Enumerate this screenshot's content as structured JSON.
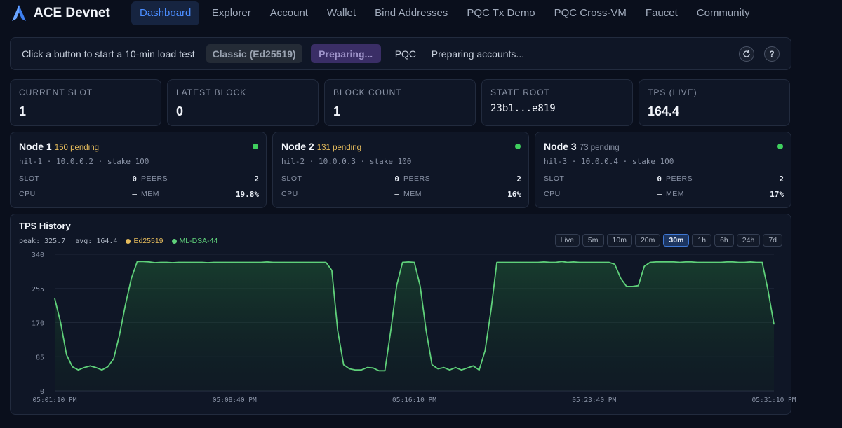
{
  "brand": {
    "title": "ACE Devnet"
  },
  "nav": {
    "tabs": [
      "Dashboard",
      "Explorer",
      "Account",
      "Wallet",
      "Bind Addresses",
      "PQC Tx Demo",
      "PQC Cross-VM",
      "Faucet",
      "Community"
    ],
    "active": "Dashboard"
  },
  "loadtest": {
    "hint": "Click a button to start a 10-min load test",
    "classic_label": "Classic (Ed25519)",
    "pqc_label": "Preparing...",
    "status": "PQC — Preparing accounts...",
    "help_label": "?"
  },
  "stats": [
    {
      "label": "CURRENT SLOT",
      "value": "1"
    },
    {
      "label": "LATEST BLOCK",
      "value": "0"
    },
    {
      "label": "BLOCK COUNT",
      "value": "1"
    },
    {
      "label": "STATE ROOT",
      "value": "23b1...e819"
    },
    {
      "label": "TPS (LIVE)",
      "value": "164.4"
    }
  ],
  "node_labels": {
    "slot": "SLOT",
    "peers": "PEERS",
    "cpu": "CPU",
    "mem": "MEM"
  },
  "nodes": [
    {
      "name": "Node 1",
      "pending": "150 pending",
      "pending_color": "#e6bc5c",
      "addr": "hil-1 · 10.0.0.2 · stake 100",
      "slot": "0",
      "peers": "2",
      "cpu": "—",
      "mem": "19.8%"
    },
    {
      "name": "Node 2",
      "pending": "131 pending",
      "pending_color": "#e6bc5c",
      "addr": "hil-2 · 10.0.0.3 · stake 100",
      "slot": "0",
      "peers": "2",
      "cpu": "—",
      "mem": "16%"
    },
    {
      "name": "Node 3",
      "pending": "73 pending",
      "pending_color": "#8a93a6",
      "addr": "hil-3 · 10.0.0.4 · stake 100",
      "slot": "0",
      "peers": "2",
      "cpu": "—",
      "mem": "17%"
    }
  ],
  "chart": {
    "title": "TPS History",
    "peak_text": "peak: 325.7",
    "avg_text": "avg: 164.4",
    "ranges": [
      "Live",
      "5m",
      "10m",
      "20m",
      "30m",
      "1h",
      "6h",
      "24h",
      "7d"
    ],
    "active_range": "30m"
  },
  "colors": {
    "accent": "#4b8dff",
    "ed25519": "#e6bc5c",
    "ml_dsa": "#5fd07a",
    "status_ok": "#3fcf5e"
  },
  "chart_data": {
    "type": "area",
    "title": "TPS History",
    "ylim": [
      0,
      340
    ],
    "yticks": [
      0,
      85,
      170,
      255,
      340
    ],
    "xticks": [
      "05:01:10 PM",
      "05:08:40 PM",
      "05:16:10 PM",
      "05:23:40 PM",
      "05:31:10 PM"
    ],
    "grid": true,
    "legend_position": "top-left",
    "series": [
      {
        "name": "Ed25519",
        "color": "#e6bc5c",
        "values": []
      },
      {
        "name": "ML-DSA-44",
        "color": "#5fd07a",
        "values": [
          230,
          170,
          90,
          60,
          52,
          58,
          62,
          58,
          52,
          60,
          80,
          140,
          215,
          280,
          322,
          322,
          321,
          319,
          320,
          320,
          319,
          320,
          320,
          320,
          320,
          320,
          319,
          320,
          320,
          320,
          320,
          320,
          320,
          320,
          320,
          320,
          321,
          320,
          320,
          320,
          320,
          320,
          320,
          320,
          320,
          320,
          320,
          300,
          150,
          65,
          55,
          52,
          52,
          58,
          57,
          50,
          50,
          150,
          262,
          320,
          321,
          320,
          260,
          150,
          65,
          55,
          58,
          52,
          58,
          52,
          57,
          62,
          52,
          100,
          200,
          320,
          320,
          320,
          320,
          320,
          320,
          320,
          320,
          321,
          320,
          320,
          322,
          320,
          321,
          320,
          320,
          320,
          320,
          320,
          320,
          315,
          280,
          260,
          260,
          262,
          310,
          320,
          321,
          321,
          321,
          321,
          320,
          321,
          321,
          320,
          320,
          320,
          320,
          320,
          321,
          321,
          320,
          320,
          321,
          320,
          320,
          250,
          166
        ]
      }
    ]
  }
}
